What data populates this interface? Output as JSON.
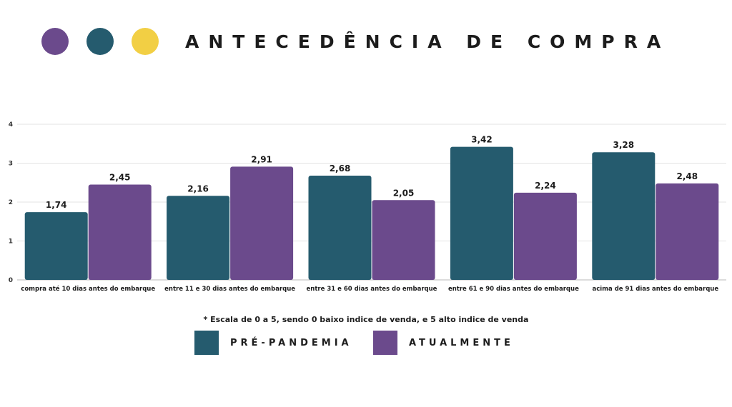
{
  "header": {
    "title": "ANTECEDÊNCIA DE COMPRA",
    "dots": [
      {
        "name": "purple-dot",
        "color": "#6b4a8c"
      },
      {
        "name": "teal-dot",
        "color": "#255b6e"
      },
      {
        "name": "yellow-dot",
        "color": "#f2cf44"
      }
    ]
  },
  "chart_data": {
    "type": "bar",
    "categories": [
      "compra até 10 dias antes do embarque",
      "entre 11 e 30 dias antes do embarque",
      "entre 31 e 60 dias antes do embarque",
      "entre 61 e 90 dias antes do embarque",
      "acima de 91 dias antes do embarque"
    ],
    "series": [
      {
        "name": "PRÉ-PANDEMIA",
        "color": "#255b6e",
        "values": [
          1.74,
          2.16,
          2.68,
          3.42,
          3.28
        ],
        "labels": [
          "1,74",
          "2,16",
          "2,68",
          "3,42",
          "3,28"
        ]
      },
      {
        "name": "ATUALMENTE",
        "color": "#6b4a8c",
        "values": [
          2.45,
          2.91,
          2.05,
          2.24,
          2.48
        ],
        "labels": [
          "2,45",
          "2,91",
          "2,05",
          "2,24",
          "2,48"
        ]
      }
    ],
    "ylim": [
      0,
      4
    ],
    "yticks": [
      0,
      1,
      2,
      3,
      4
    ],
    "grid": true,
    "legend_position": "bottom-center",
    "note": "* Escala de 0 a 5, sendo 0 baixo indice de venda, e 5 alto indice de venda"
  }
}
